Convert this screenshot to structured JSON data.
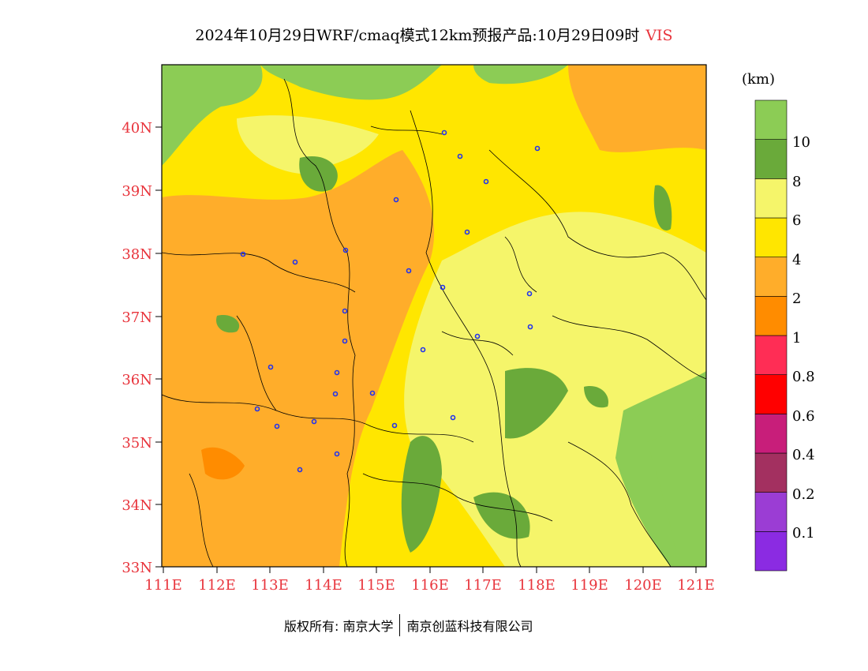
{
  "header": {
    "title": "2024年10月29日WRF/cmaq模式12km预报产品:10月29日09时",
    "variable": "VIS"
  },
  "axes": {
    "lat_labels": [
      "40N",
      "39N",
      "38N",
      "37N",
      "36N",
      "35N",
      "34N",
      "33N"
    ],
    "lon_labels": [
      "111E",
      "112E",
      "113E",
      "114E",
      "115E",
      "116E",
      "117E",
      "118E",
      "119E",
      "120E",
      "121E"
    ]
  },
  "colorbar": {
    "unit": "(km)",
    "colors": [
      "#8b2be2",
      "#9b3dd4",
      "#a33060",
      "#c81e7a",
      "#ff0000",
      "#ff2d55",
      "#ff8c00",
      "#ffad2a",
      "#ffe600",
      "#f5f56a",
      "#6aaa3a",
      "#8ccc55"
    ],
    "labels": [
      "0.1",
      "0.2",
      "0.4",
      "0.6",
      "0.8",
      "1",
      "2",
      "4",
      "6",
      "8",
      "10"
    ]
  },
  "footer": {
    "copyright": "版权所有: 南京大学",
    "company": "南京创蓝科技有限公司"
  }
}
